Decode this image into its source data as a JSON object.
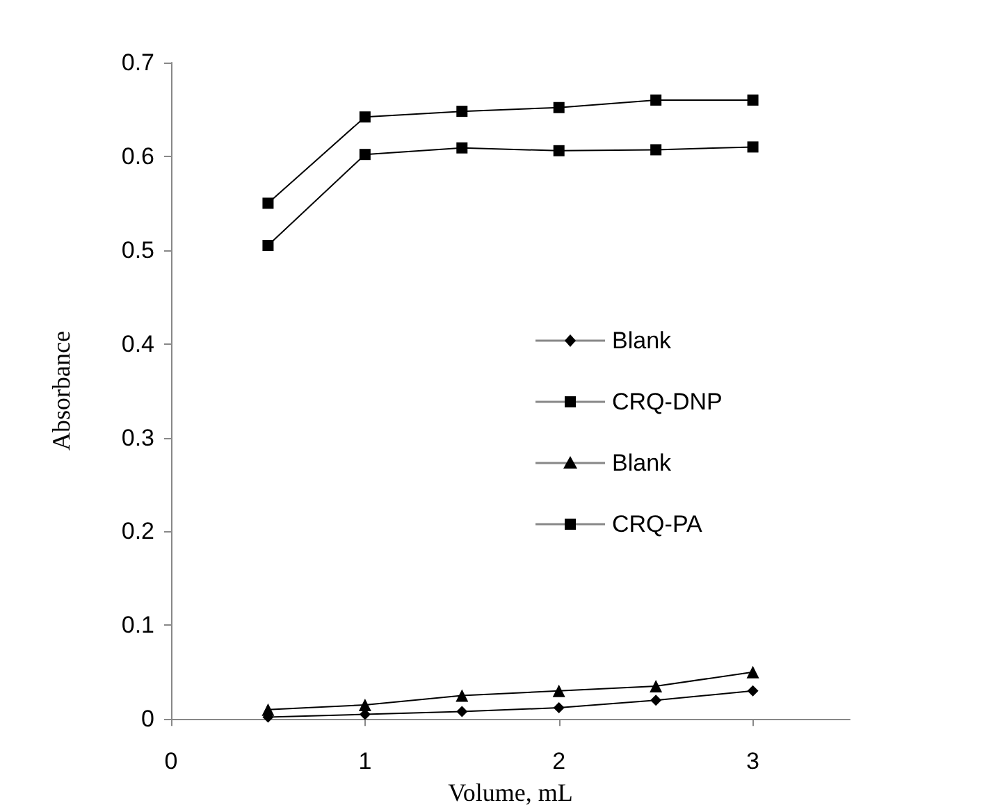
{
  "chart_data": {
    "type": "line",
    "xlabel": "Volume, mL",
    "ylabel": "Absorbance",
    "x": [
      0.5,
      1,
      1.5,
      2,
      2.5,
      3
    ],
    "series": [
      {
        "name": "Blank",
        "color": "#000000",
        "marker": "diamond",
        "values": [
          0.002,
          0.005,
          0.008,
          0.012,
          0.02,
          0.03
        ]
      },
      {
        "name": "CRQ-DNP",
        "color": "#000000",
        "marker": "square",
        "values": [
          0.55,
          0.642,
          0.648,
          0.652,
          0.66,
          0.66
        ]
      },
      {
        "name": "Blank",
        "color": "#000000",
        "marker": "triangle",
        "values": [
          0.01,
          0.015,
          0.025,
          0.03,
          0.035,
          0.05
        ]
      },
      {
        "name": "CRQ-PA",
        "color": "#000000",
        "marker": "square",
        "values": [
          0.505,
          0.602,
          0.609,
          0.606,
          0.607,
          0.61
        ]
      }
    ],
    "xlim": [
      0,
      3.5
    ],
    "xticks": [
      0,
      1,
      2,
      3
    ],
    "ylim": [
      0,
      0.7
    ],
    "yticks": [
      0,
      0.1,
      0.2,
      0.3,
      0.4,
      0.5,
      0.6,
      0.7
    ],
    "grid": false,
    "legend": "right",
    "line_style": "solid"
  }
}
